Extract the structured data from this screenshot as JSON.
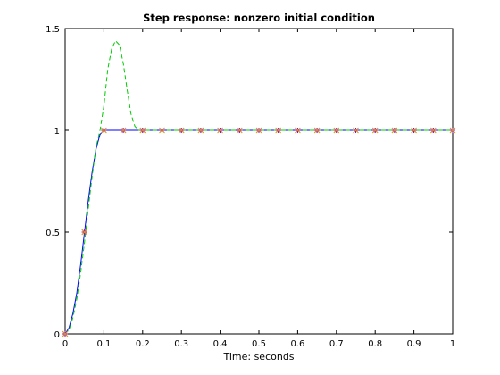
{
  "chart_data": {
    "type": "line",
    "title": "Step response: nonzero initial condition",
    "xlabel": "Time: seconds",
    "ylabel": "",
    "xlim": [
      0,
      1
    ],
    "ylim": [
      0,
      1.5
    ],
    "grid": false,
    "legend": "none",
    "x_ticks": [
      {
        "v": 0,
        "label": "0"
      },
      {
        "v": 0.1,
        "label": "0.1"
      },
      {
        "v": 0.2,
        "label": "0.2"
      },
      {
        "v": 0.3,
        "label": "0.3"
      },
      {
        "v": 0.4,
        "label": "0.4"
      },
      {
        "v": 0.5,
        "label": "0.5"
      },
      {
        "v": 0.6,
        "label": "0.6"
      },
      {
        "v": 0.7,
        "label": "0.7"
      },
      {
        "v": 0.8,
        "label": "0.8"
      },
      {
        "v": 0.9,
        "label": "0.9"
      },
      {
        "v": 1,
        "label": "1"
      }
    ],
    "y_ticks": [
      {
        "v": 0,
        "label": "0"
      },
      {
        "v": 0.5,
        "label": "0.5"
      },
      {
        "v": 1,
        "label": "1"
      },
      {
        "v": 1.5,
        "label": "1.5"
      }
    ],
    "series": [
      {
        "style": "solid",
        "color": "#0000ff",
        "x": [
          0,
          0.01,
          0.02,
          0.03,
          0.04,
          0.05,
          0.06,
          0.07,
          0.08,
          0.09,
          0.1,
          0.2,
          0.3,
          0.4,
          0.5,
          0.6,
          0.7,
          0.8,
          0.9,
          1.0
        ],
        "y": [
          0,
          0.03,
          0.1,
          0.2,
          0.34,
          0.5,
          0.66,
          0.8,
          0.91,
          0.98,
          1.0,
          1.0,
          1.0,
          1.0,
          1.0,
          1.0,
          1.0,
          1.0,
          1.0,
          1.0
        ]
      },
      {
        "style": "dashed",
        "color": "#00cc00",
        "x": [
          0,
          0.01,
          0.02,
          0.03,
          0.04,
          0.05,
          0.06,
          0.07,
          0.08,
          0.09,
          0.1,
          0.11,
          0.12,
          0.13,
          0.14,
          0.15,
          0.16,
          0.17,
          0.18,
          0.19,
          0.2,
          0.3,
          0.4,
          0.5,
          0.6,
          0.7,
          0.8,
          0.9,
          1.0
        ],
        "y": [
          0,
          0.02,
          0.08,
          0.17,
          0.3,
          0.45,
          0.62,
          0.78,
          0.92,
          1.0,
          1.12,
          1.3,
          1.4,
          1.44,
          1.42,
          1.33,
          1.2,
          1.08,
          1.02,
          1.0,
          1.0,
          1.0,
          1.0,
          1.0,
          1.0,
          1.0,
          1.0,
          1.0,
          1.0
        ]
      },
      {
        "style": "markers-star",
        "color": "#ff0000",
        "x": [
          0,
          0.05,
          0.1,
          0.15,
          0.2,
          0.25,
          0.3,
          0.35,
          0.4,
          0.45,
          0.5,
          0.55,
          0.6,
          0.65,
          0.7,
          0.75,
          0.8,
          0.85,
          0.9,
          0.95,
          1.0
        ],
        "y": [
          0,
          0.5,
          1,
          1,
          1,
          1,
          1,
          1,
          1,
          1,
          1,
          1,
          1,
          1,
          1,
          1,
          1,
          1,
          1,
          1,
          1
        ]
      },
      {
        "style": "markers-plus",
        "color": "#8b00ff",
        "x": [
          0,
          0.05,
          0.1,
          0.15,
          0.2,
          0.25,
          0.3,
          0.35,
          0.4,
          0.45,
          0.5,
          0.55,
          0.6,
          0.65,
          0.7,
          0.75,
          0.8,
          0.85,
          0.9,
          0.95,
          1.0
        ],
        "y": [
          0,
          0.5,
          1,
          1,
          1,
          1,
          1,
          1,
          1,
          1,
          1,
          1,
          1,
          1,
          1,
          1,
          1,
          1,
          1,
          1,
          1
        ]
      },
      {
        "style": "markers-x",
        "color": "#d4a000",
        "x": [
          0,
          0.05,
          0.1,
          0.15,
          0.2,
          0.25,
          0.3,
          0.35,
          0.4,
          0.45,
          0.5,
          0.55,
          0.6,
          0.65,
          0.7,
          0.75,
          0.8,
          0.85,
          0.9,
          0.95,
          1.0
        ],
        "y": [
          0,
          0.5,
          1,
          1,
          1,
          1,
          1,
          1,
          1,
          1,
          1,
          1,
          1,
          1,
          1,
          1,
          1,
          1,
          1,
          1,
          1
        ]
      }
    ]
  }
}
